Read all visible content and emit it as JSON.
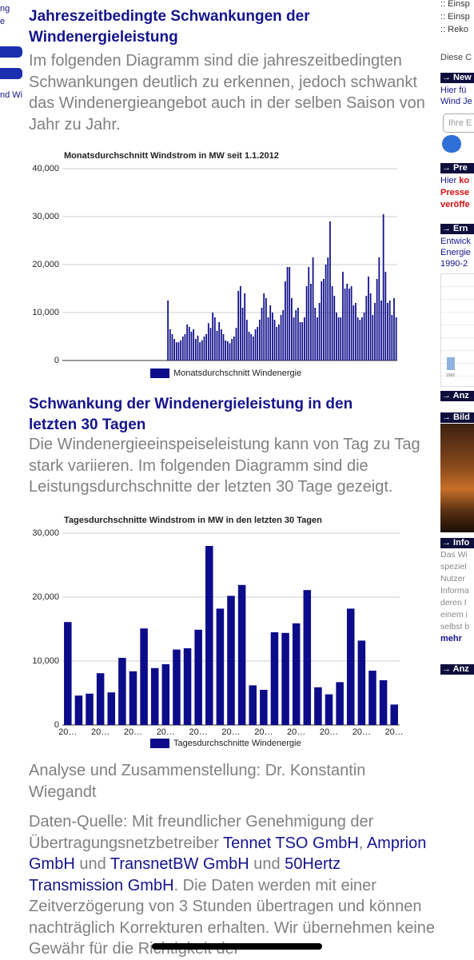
{
  "left_nav": {
    "lines": [
      "ng",
      "e",
      "nd Wi"
    ]
  },
  "main": {
    "heading1": "Jahreszeitbedingte Schwankungen der Windenergieleistung",
    "para1": "Im folgenden Diagramm sind die jahreszeitbedingten Schwankungen deutlich zu erkennen, jedoch schwankt das Windenergieangebot auch in der selben Saison von Jahr zu Jahr.",
    "heading2": "Schwankung der Windenergieleistung in den letzten 30 Tagen",
    "para2": "Die Windenergieeinspeiseleistung kann von Tag zu Tag stark variieren. Im folgenden Diagramm sind die Leistungsdurchschnitte der letzten 30 Tage gezeigt.",
    "author": "Analyse und Zusammenstellung: Dr. Konstantin Wiegandt",
    "source": [
      "Daten-Quelle: Mit freundlicher Genehmigung der Übertragungsnetzbetreiber ",
      "Tennet TSO GmbH",
      ", ",
      "Amprion GmbH",
      " und ",
      "TransnetBW GmbH",
      " und ",
      "50Hertz Transmission GmbH",
      ". Die Daten werden mit einer Zeitverzögerung von 3 Stunden übertragen und können nachträglich Korrekturen erhalten. Wir übernehmen keine Gewähr für die Richtigkeit der"
    ]
  },
  "chart_data": [
    {
      "type": "bar",
      "title": "Monatsdurchschnitt Windstrom in MW seit 1.1.2012",
      "categories": [
        null,
        null,
        null,
        null,
        null,
        null,
        null,
        null,
        null,
        null,
        null,
        null,
        null,
        null,
        null,
        null,
        null,
        null,
        null,
        null,
        null,
        null,
        null,
        null,
        null,
        null,
        null,
        null,
        null,
        null,
        null,
        null,
        null,
        null,
        null,
        null,
        null,
        null,
        null,
        null,
        null,
        null,
        null,
        null,
        null,
        null,
        null,
        null,
        null,
        null,
        null,
        null,
        null,
        null,
        null,
        null,
        null,
        null,
        null,
        null,
        null,
        null,
        null,
        null,
        null,
        null,
        null,
        null,
        null,
        null,
        null,
        null,
        null,
        null,
        null,
        null,
        null,
        null,
        null,
        null,
        null,
        null,
        null,
        null,
        null,
        null,
        null,
        null,
        null,
        null,
        null,
        null,
        null,
        null,
        null,
        null,
        null,
        null,
        null,
        null,
        null,
        null,
        null,
        null,
        null,
        null,
        null,
        null,
        null,
        null,
        null,
        null,
        null,
        null,
        null,
        null,
        null,
        null,
        null,
        null,
        null,
        null,
        null,
        null,
        null,
        null,
        null,
        null,
        null,
        null,
        null,
        null,
        null,
        null,
        null,
        null,
        null,
        null,
        null,
        null,
        null,
        null,
        null,
        null,
        null,
        null,
        null,
        null,
        null,
        null,
        null,
        null,
        null,
        null,
        null,
        null,
        null
      ],
      "series": [
        {
          "name": "Monatsdurchschnitt Windenergie",
          "color": "#0c0c8a",
          "values": [
            null,
            null,
            null,
            null,
            null,
            null,
            null,
            null,
            null,
            null,
            null,
            null,
            null,
            null,
            null,
            null,
            null,
            null,
            null,
            null,
            null,
            null,
            null,
            null,
            null,
            null,
            null,
            null,
            null,
            null,
            null,
            null,
            null,
            null,
            null,
            null,
            null,
            null,
            null,
            null,
            null,
            null,
            null,
            null,
            null,
            null,
            null,
            null,
            null,
            12500,
            6500,
            5500,
            4500,
            3800,
            3800,
            4200,
            5000,
            5500,
            7500,
            7000,
            6000,
            6500,
            4500,
            5200,
            3800,
            4200,
            5000,
            5500,
            7800,
            6800,
            10000,
            9000,
            6200,
            8000,
            6500,
            5500,
            4200,
            4000,
            3600,
            4500,
            5000,
            6800,
            14500,
            15500,
            11000,
            14000,
            8500,
            6000,
            5500,
            5000,
            6500,
            7000,
            8500,
            11000,
            14000,
            13000,
            9000,
            11500,
            10000,
            8500,
            7000,
            7500,
            9500,
            10500,
            16500,
            19500,
            19500,
            13000,
            9000,
            10500,
            11000,
            8000,
            8000,
            9000,
            15500,
            19500,
            16000,
            21500,
            11000,
            9000,
            12000,
            16500,
            17000,
            20000,
            21500,
            29000,
            15500,
            13500,
            10000,
            9000,
            9000,
            18500,
            15000,
            16000,
            15000,
            15500,
            11500,
            12000,
            9000,
            8500,
            9000,
            10000,
            13500,
            17500,
            14000,
            9500,
            12000,
            17000,
            21500,
            12500,
            30500,
            18500,
            12000,
            12500,
            9500,
            13000,
            9000
          ]
        }
      ],
      "ylim": [
        0,
        40000
      ],
      "yticks": [
        0,
        {
          "value": 10000,
          "label": "10,000"
        },
        {
          "value": 20000,
          "label": "20,000"
        },
        {
          "value": 30000,
          "label": "30,000"
        },
        {
          "value": 40000,
          "label": "40,000"
        }
      ],
      "grid": true,
      "legend": "bottom"
    },
    {
      "type": "bar",
      "title": "Tagesdurchschnitte Windstrom in MW in den letzten 30 Tagen",
      "categories": [
        "20…",
        null,
        null,
        "20…",
        null,
        null,
        "20…",
        null,
        null,
        "20…",
        null,
        null,
        "20…",
        null,
        null,
        "20…",
        null,
        null,
        "20…",
        null,
        null,
        "20…",
        null,
        null,
        "20…",
        null,
        null,
        "20…",
        null,
        null,
        "20…"
      ],
      "series": [
        {
          "name": "Tagesdurchschnitte Windenergie",
          "color": "#0c0c8a",
          "values": [
            16100,
            4600,
            4900,
            8100,
            5100,
            10500,
            8400,
            15100,
            8900,
            9500,
            11800,
            12000,
            14900,
            28000,
            18200,
            20200,
            21900,
            6200,
            5500,
            14500,
            14400,
            15900,
            21100,
            5900,
            4800,
            6700,
            18200,
            13200,
            8500,
            7000,
            3200
          ]
        }
      ],
      "ylim": [
        0,
        30000
      ],
      "yticks": [
        0,
        {
          "value": 10000,
          "label": "10,000"
        },
        {
          "value": 20000,
          "label": "20,000"
        },
        {
          "value": 30000,
          "label": "30,000"
        }
      ],
      "grid": true,
      "legend": "bottom"
    }
  ],
  "sidebar": {
    "links": [
      ":: Einsp",
      ":: Einsp",
      ":: Reko"
    ],
    "intro": "Diese C",
    "news": {
      "header": "→ New",
      "lines": [
        "Hier fü",
        "Wind Je"
      ],
      "input": "Ihre E"
    },
    "press": {
      "header": "→ Pre",
      "lead": "Hier ",
      "lead_bold": "ko",
      "lines": [
        "Presse",
        "veröffe"
      ]
    },
    "ern": {
      "header": "→ Ern",
      "lines": [
        "Entwick",
        "Energie",
        "1990-2"
      ],
      "axis_label": "1992"
    },
    "ads1": "→ Anz",
    "images": "→ Bild",
    "info": {
      "header": "→ Info",
      "lines": [
        "Das Wi",
        "speziel",
        "Nutzer",
        "Informa",
        "deren I",
        "einem i",
        "selbst b"
      ],
      "more": "mehr"
    },
    "ads2": "→ Anz"
  }
}
